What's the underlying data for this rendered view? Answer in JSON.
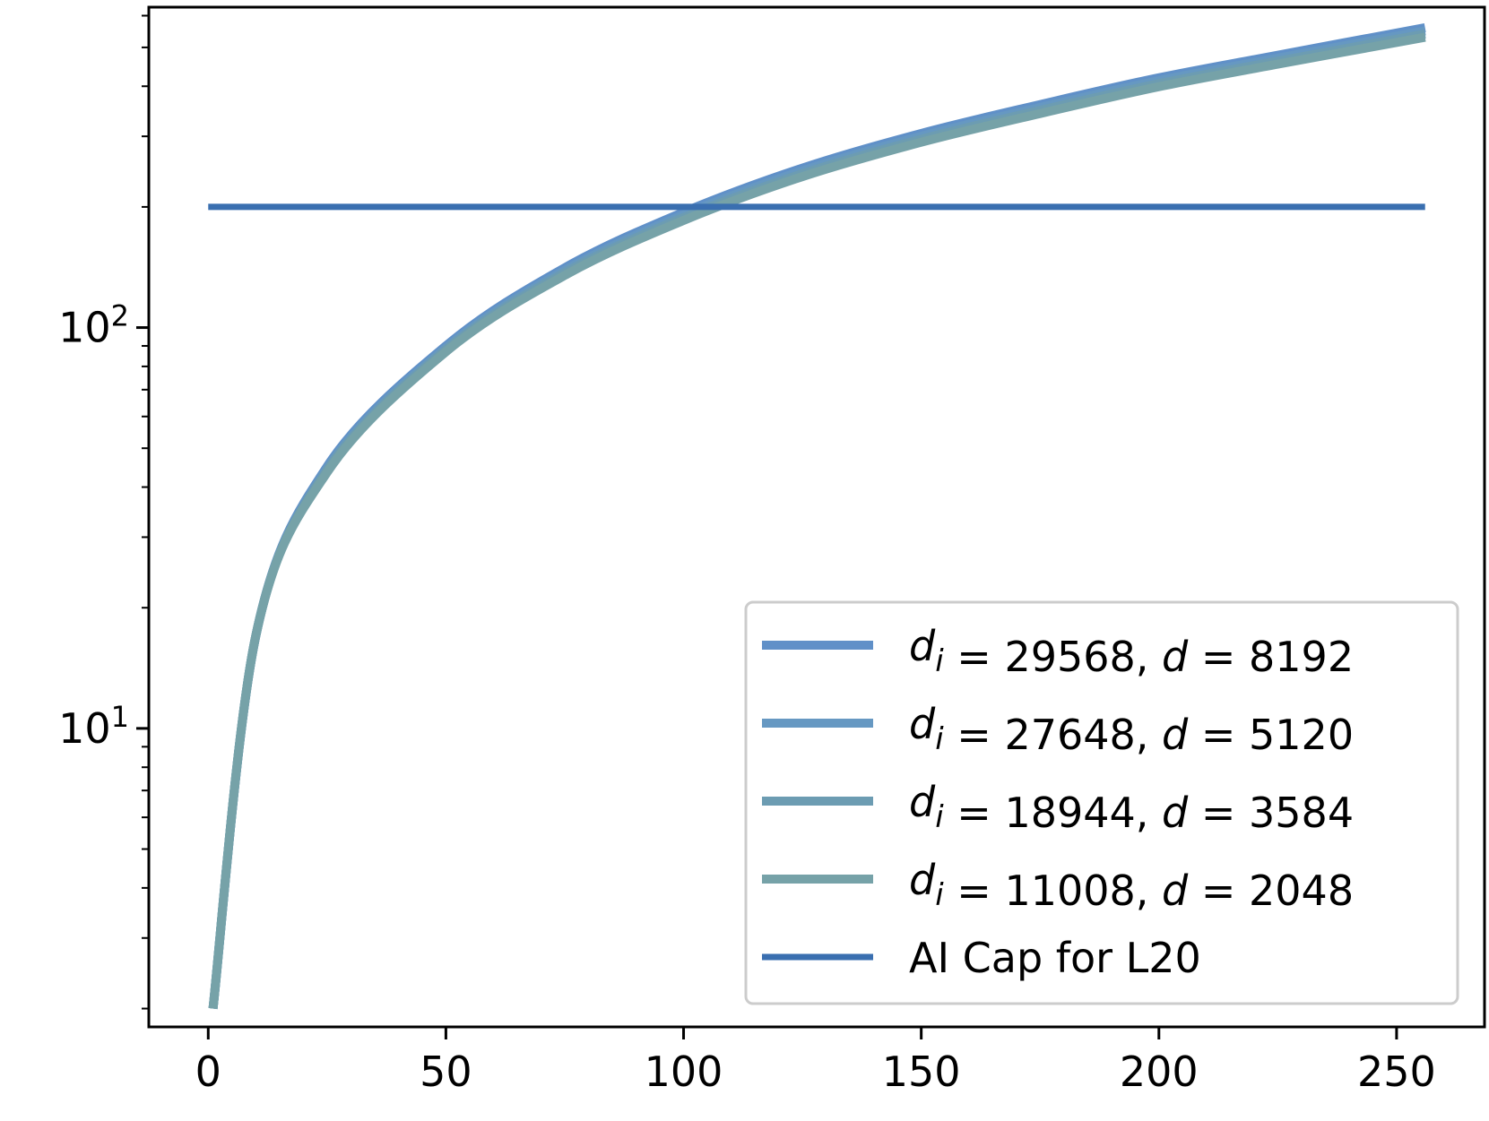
{
  "chart_data": {
    "type": "line",
    "title": "",
    "xlabel": "",
    "ylabel": "",
    "xlim": [
      -12.5,
      268.5
    ],
    "ylim": [
      1.8,
      630
    ],
    "yscale": "log",
    "x_ticks": [
      0,
      50,
      100,
      150,
      200,
      250
    ],
    "x_tick_labels": [
      "0",
      "50",
      "100",
      "150",
      "200",
      "250"
    ],
    "y_ticks": [
      10,
      100
    ],
    "y_tick_labels": [
      {
        "base": "10",
        "exp": "1"
      },
      {
        "base": "10",
        "exp": "2"
      }
    ],
    "grid": false,
    "legend_position": "lower-right",
    "series": [
      {
        "name": "d_i = 29568, d = 8192",
        "legend": {
          "di": "29568",
          "d": "8192"
        },
        "color": "#6090c8",
        "x": [
          1,
          10,
          25,
          50,
          75,
          100,
          125,
          150,
          175,
          200,
          225,
          256
        ],
        "y": [
          2.0,
          17,
          45,
          90,
          141,
          194,
          250,
          305,
          360,
          420,
          478,
          560
        ]
      },
      {
        "name": "d_i = 27648, d = 5120",
        "legend": {
          "di": "27648",
          "d": "5120"
        },
        "color": "#6698c2",
        "x": [
          1,
          10,
          25,
          50,
          75,
          100,
          125,
          150,
          175,
          200,
          225,
          256
        ],
        "y": [
          2.0,
          17,
          44.5,
          89,
          139,
          191,
          246,
          300,
          354,
          413,
          470,
          550
        ]
      },
      {
        "name": "d_i = 18944, d = 3584",
        "legend": {
          "di": "18944",
          "d": "3584"
        },
        "color": "#6c9cb2",
        "x": [
          1,
          10,
          25,
          50,
          75,
          100,
          125,
          150,
          175,
          200,
          225,
          256
        ],
        "y": [
          2.0,
          17,
          44,
          88,
          137,
          188,
          242,
          295,
          348,
          406,
          462,
          540
        ]
      },
      {
        "name": "d_i = 11008, d = 2048",
        "legend": {
          "di": "11008",
          "d": "2048"
        },
        "color": "#76a2a8",
        "x": [
          1,
          10,
          25,
          50,
          75,
          100,
          125,
          150,
          175,
          200,
          225,
          256
        ],
        "y": [
          2.0,
          17,
          43.5,
          87,
          135,
          185,
          238,
          290,
          342,
          399,
          454,
          530
        ]
      },
      {
        "name": "AI Cap for L20",
        "color": "#3a6fb0",
        "x": [
          0,
          256
        ],
        "y": [
          200,
          200
        ]
      }
    ]
  }
}
